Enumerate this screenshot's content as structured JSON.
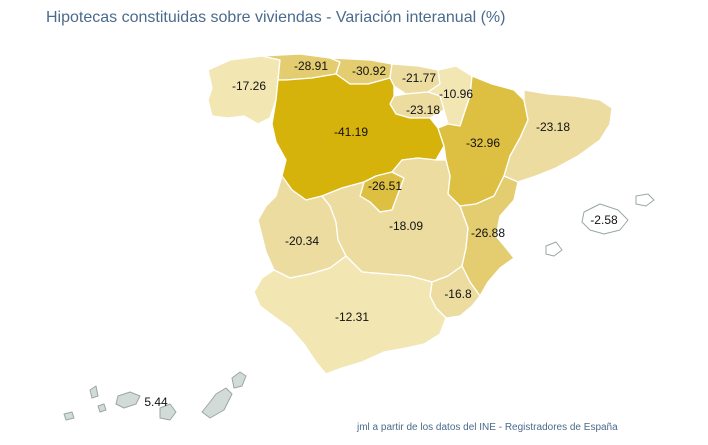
{
  "title": "Hipotecas constituidas sobre viviendas - Variación interanual (%)",
  "source": "jml a partir de los datos del INE - Registradores de España",
  "colors": {
    "lightest": "#f2e6b3",
    "light": "#ecdca0",
    "mid": "#e4cd70",
    "strong": "#ddc041",
    "darkest": "#d6b30a",
    "canarias": "#d3dbd8",
    "baleares": "#ffffff"
  },
  "regions": {
    "galicia": "-17.26",
    "asturias": "-28.91",
    "cantabria": "-30.92",
    "pais_vasco": "-21.77",
    "navarra": "-10.96",
    "la_rioja": "-23.18",
    "castilla_leon": "-41.19",
    "aragon": "-32.96",
    "cataluna": "-23.18",
    "madrid": "-26.51",
    "extremadura": "-20.34",
    "castilla_la_mancha": "-18.09",
    "valencia": "-26.88",
    "murcia": "-16.8",
    "andalucia": "-12.31",
    "baleares": "-2.58",
    "canarias": "5.44"
  }
}
